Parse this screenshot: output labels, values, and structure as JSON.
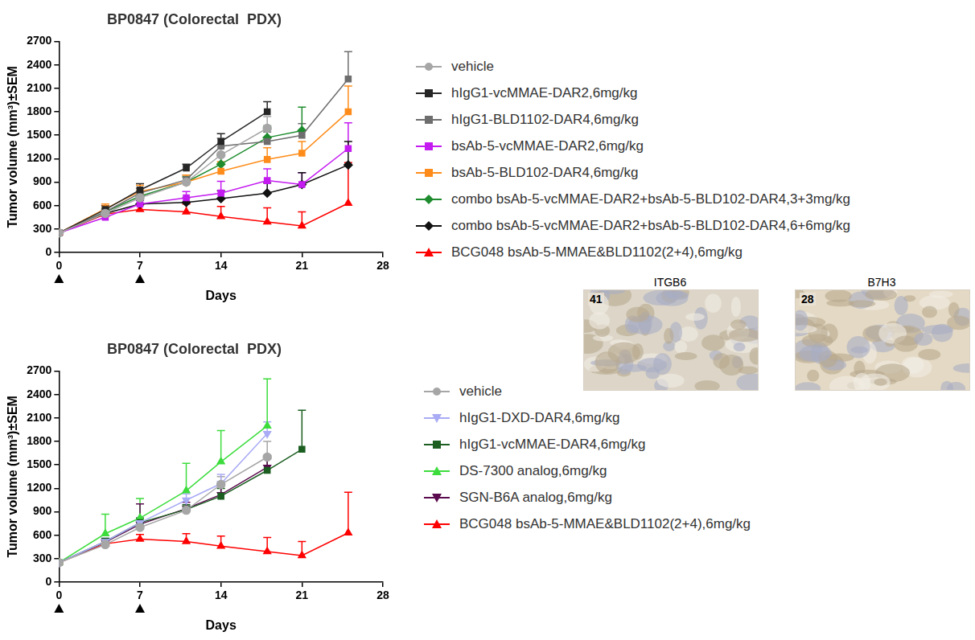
{
  "chart_data": [
    {
      "type": "line",
      "title": "BP0847 (Colorectal  PDX)",
      "x_label": "Days",
      "y_label": "Tumor volume (mm³)±SEM",
      "x": [
        0,
        4,
        7,
        11,
        14,
        18,
        21,
        25
      ],
      "xlim": [
        0,
        28
      ],
      "xticks": [
        0,
        7,
        14,
        21,
        28
      ],
      "ylim": [
        0,
        2700
      ],
      "yticks": [
        0,
        300,
        600,
        900,
        1200,
        1500,
        1800,
        2100,
        2400,
        2700
      ],
      "grid": false,
      "legend": "right",
      "dosing_days": [
        0,
        7
      ],
      "series": [
        {
          "name": "vehicle",
          "color": "#a6a6a6",
          "marker": "circle",
          "values": [
            250,
            500,
            700,
            900,
            1250,
            1590,
            null,
            null
          ],
          "errors": [
            20,
            40,
            50,
            60,
            100,
            150,
            null,
            null
          ]
        },
        {
          "name": "hIgG1-vcMMAE-DAR2,6mg/kg",
          "color": "#262626",
          "marker": "square",
          "values": [
            250,
            550,
            800,
            1080,
            1420,
            1800,
            null,
            null
          ],
          "errors": [
            20,
            50,
            80,
            50,
            100,
            130,
            null,
            null
          ]
        },
        {
          "name": "hIgG1-BLD1102-DAR4,6mg/kg",
          "color": "#6e6e6e",
          "marker": "square",
          "values": [
            250,
            520,
            760,
            930,
            1360,
            1420,
            1500,
            2220
          ],
          "errors": [
            20,
            40,
            60,
            60,
            100,
            120,
            150,
            350
          ]
        },
        {
          "name": "bsAb-5-vcMMAE-DAR2,6mg/kg",
          "color": "#c41cf0",
          "marker": "square",
          "values": [
            250,
            450,
            620,
            700,
            760,
            920,
            870,
            1330
          ],
          "errors": [
            20,
            40,
            50,
            80,
            150,
            150,
            150,
            330
          ]
        },
        {
          "name": "bsAb-5-BLD102-DAR4,6mg/kg",
          "color": "#ff8c1a",
          "marker": "square",
          "values": [
            250,
            560,
            780,
            900,
            1040,
            1190,
            1270,
            1800
          ],
          "errors": [
            20,
            60,
            80,
            90,
            120,
            150,
            150,
            330
          ]
        },
        {
          "name": "combo bsAb-5-vcMMAE-DAR2+bsAb-5-BLD102-DAR4,3+3mg/kg",
          "color": "#1e8c2e",
          "marker": "diamond",
          "values": [
            250,
            520,
            720,
            900,
            1130,
            1470,
            1560,
            null
          ],
          "errors": [
            20,
            40,
            60,
            70,
            110,
            150,
            300,
            null
          ]
        },
        {
          "name": "combo bsAb-5-vcMMAE-DAR2+bsAb-5-BLD102-DAR4,6+6mg/kg",
          "color": "#111111",
          "marker": "diamond",
          "values": [
            250,
            500,
            620,
            640,
            690,
            760,
            870,
            1120
          ],
          "errors": [
            30,
            40,
            50,
            60,
            100,
            130,
            150,
            300
          ]
        },
        {
          "name": "BCG048 bsAb-5-MMAE&BLD1102(2+4),6mg/kg",
          "color": "#ff0000",
          "marker": "triangle",
          "values": [
            250,
            490,
            550,
            520,
            460,
            390,
            340,
            630
          ],
          "errors": [
            20,
            40,
            60,
            100,
            130,
            180,
            180,
            520
          ]
        }
      ]
    },
    {
      "type": "line",
      "title": "BP0847 (Colorectal  PDX)",
      "x_label": "Days",
      "y_label": "Tumor volume (mm³)±SEM",
      "x": [
        0,
        4,
        7,
        11,
        14,
        18,
        21,
        25
      ],
      "xlim": [
        0,
        28
      ],
      "xticks": [
        0,
        7,
        14,
        21,
        28
      ],
      "ylim": [
        0,
        2700
      ],
      "yticks": [
        0,
        300,
        600,
        900,
        1200,
        1500,
        1800,
        2100,
        2400,
        2700
      ],
      "grid": false,
      "legend": "right",
      "dosing_days": [
        0,
        7
      ],
      "series": [
        {
          "name": "vehicle",
          "color": "#a6a6a6",
          "marker": "circle",
          "values": [
            250,
            480,
            700,
            920,
            1250,
            1600,
            null,
            null
          ],
          "errors": [
            20,
            40,
            60,
            60,
            100,
            200,
            null,
            null
          ]
        },
        {
          "name": "hIgG1-DXD-DAR4,6mg/kg",
          "color": "#a9abf5",
          "marker": "triangle_down",
          "values": [
            250,
            520,
            760,
            1050,
            1260,
            1900,
            null,
            null
          ],
          "errors": [
            20,
            40,
            60,
            80,
            120,
            150,
            null,
            null
          ]
        },
        {
          "name": "hIgG1-vcMMAE-DAR4,6mg/kg",
          "color": "#1b5e20",
          "marker": "square",
          "values": [
            250,
            520,
            760,
            930,
            1100,
            1430,
            1700,
            null
          ],
          "errors": [
            20,
            40,
            60,
            60,
            100,
            150,
            500,
            null
          ]
        },
        {
          "name": "DS-7300 analog,6mg/kg",
          "color": "#3ddc3d",
          "marker": "triangle",
          "values": [
            250,
            620,
            820,
            1170,
            1540,
            2000,
            null,
            null
          ],
          "errors": [
            30,
            250,
            250,
            350,
            400,
            600,
            null,
            null
          ]
        },
        {
          "name": "SGN-B6A analog,6mg/kg",
          "color": "#5a0a4e",
          "marker": "triangle_down",
          "values": [
            250,
            510,
            740,
            940,
            1120,
            1470,
            null,
            null
          ],
          "errors": [
            20,
            40,
            260,
            80,
            120,
            150,
            null,
            null
          ]
        },
        {
          "name": "BCG048 bsAb-5-MMAE&BLD1102(2+4),6mg/kg",
          "color": "#ff0000",
          "marker": "triangle",
          "values": [
            250,
            490,
            550,
            520,
            460,
            390,
            340,
            630
          ],
          "errors": [
            20,
            40,
            60,
            100,
            130,
            180,
            180,
            520
          ]
        }
      ]
    }
  ],
  "ihc_images": [
    {
      "label": "ITGB6",
      "score": 41
    },
    {
      "label": "B7H3",
      "score": 28
    }
  ]
}
